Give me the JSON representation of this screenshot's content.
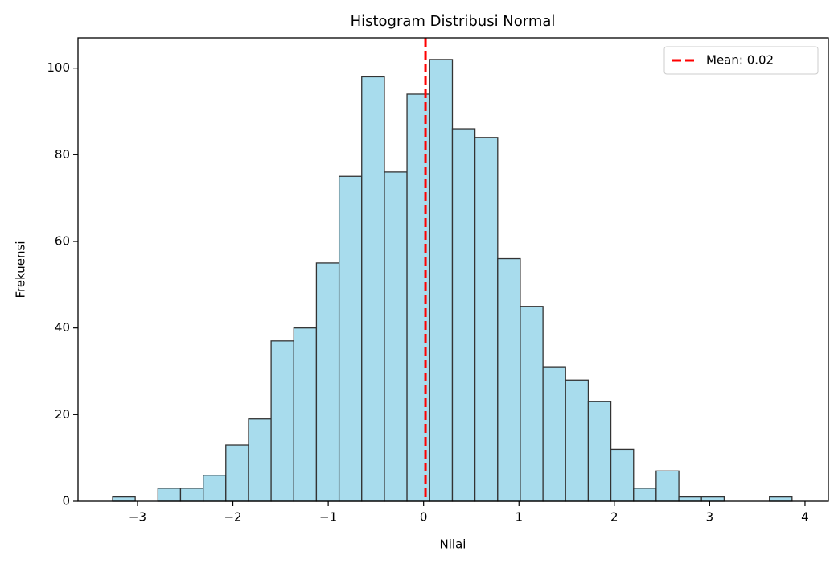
{
  "chart_data": {
    "type": "histogram",
    "title": "Histogram Distribusi Normal",
    "xlabel": "Nilai",
    "ylabel": "Frekuensi",
    "bins": [
      -3.261,
      -3.024,
      -2.786,
      -2.549,
      -2.311,
      -2.074,
      -1.836,
      -1.599,
      -1.361,
      -1.124,
      -0.886,
      -0.649,
      -0.411,
      -0.174,
      0.064,
      0.302,
      0.539,
      0.777,
      1.014,
      1.252,
      1.489,
      1.727,
      1.964,
      2.202,
      2.439,
      2.677,
      2.914,
      3.152,
      3.389,
      3.627,
      3.864
    ],
    "values": [
      1,
      0,
      3,
      3,
      6,
      13,
      19,
      37,
      40,
      55,
      75,
      98,
      76,
      94,
      102,
      86,
      84,
      56,
      45,
      31,
      28,
      23,
      12,
      3,
      7,
      1,
      1,
      0,
      0,
      1
    ],
    "color": "#a8dced",
    "edgecolor": "#333333",
    "mean_line": {
      "value": 0.02,
      "label": "Mean: 0.02",
      "color": "#ff0000"
    },
    "legend": "upper right",
    "xlim": [
      -3.624,
      4.245
    ],
    "xticks": [
      {
        "value": -3,
        "label": "−3"
      },
      {
        "value": -2,
        "label": "−2"
      },
      {
        "value": -1,
        "label": "−1"
      },
      0,
      1,
      2,
      3,
      4
    ],
    "ylim": [
      0,
      107
    ],
    "yticks": [
      0,
      20,
      40,
      60,
      80,
      100
    ]
  }
}
